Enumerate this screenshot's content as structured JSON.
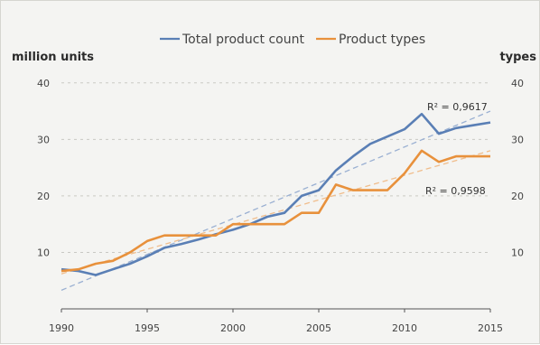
{
  "chart_data": {
    "type": "line",
    "title": "",
    "y_left_label": "million units",
    "y_right_label": "types",
    "x_ticks": [
      1990,
      1995,
      2000,
      2005,
      2010,
      2015
    ],
    "y_ticks": [
      10,
      20,
      30,
      40
    ],
    "xlim": [
      1990,
      2015
    ],
    "ylim": [
      0,
      43
    ],
    "grid": "horizontal dashed",
    "legend_position": "top-center",
    "series": [
      {
        "name": "Total product count",
        "color": "#5a7fb5",
        "x": [
          1990,
          1991,
          1992,
          1993,
          1994,
          1995,
          1996,
          1997,
          1998,
          1999,
          2000,
          2001,
          2002,
          2003,
          2004,
          2005,
          2006,
          2007,
          2008,
          2009,
          2010,
          2011,
          2012,
          2013,
          2014,
          2015
        ],
        "y": [
          7,
          6.7,
          6,
          7,
          8,
          9.3,
          10.8,
          11.5,
          12.3,
          13.2,
          14,
          15,
          16.3,
          17,
          20,
          21,
          24.5,
          27,
          29.2,
          30.5,
          31.8,
          34.5,
          31,
          32,
          32.5,
          33
        ]
      },
      {
        "name": "Product types",
        "color": "#e8913c",
        "x": [
          1990,
          1991,
          1992,
          1993,
          1994,
          1995,
          1996,
          1997,
          1998,
          1999,
          2000,
          2001,
          2002,
          2003,
          2004,
          2005,
          2006,
          2007,
          2008,
          2009,
          2010,
          2011,
          2012,
          2013,
          2014,
          2015
        ],
        "y": [
          6.7,
          7,
          8,
          8.5,
          10,
          12,
          13,
          13,
          13,
          13,
          15,
          15,
          15,
          15,
          17,
          17,
          22,
          21,
          21,
          21,
          24,
          28,
          26,
          27,
          27,
          27
        ]
      }
    ],
    "trendlines": [
      {
        "series": "Total product count",
        "r2_text": "R² = 0,9617",
        "color": "#9ab0d2",
        "from": [
          1990,
          3.3
        ],
        "to": [
          2015,
          35
        ]
      },
      {
        "series": "Product types",
        "r2_text": "R² = 0,9598",
        "color": "#f0bd8c",
        "from": [
          1990,
          6.2
        ],
        "to": [
          2015,
          28
        ]
      }
    ]
  }
}
